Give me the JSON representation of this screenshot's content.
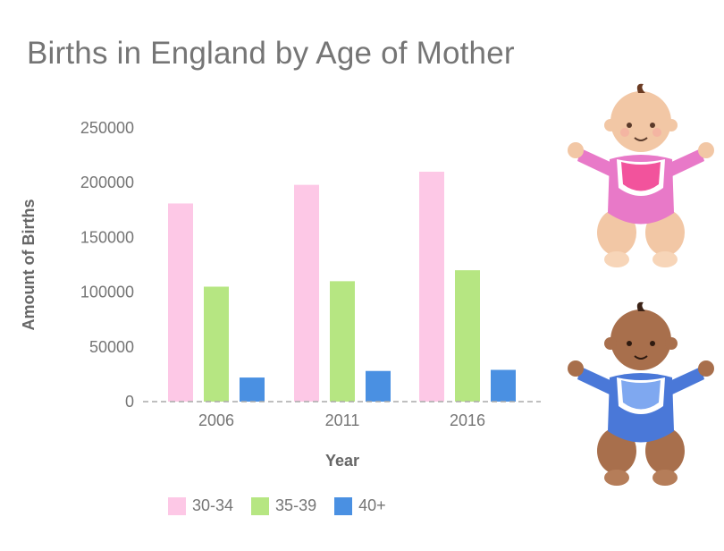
{
  "chart_data": {
    "type": "bar",
    "title": "Births in England by Age of Mother",
    "xlabel": "Year",
    "ylabel": "Amount of Births",
    "categories": [
      "2006",
      "2011",
      "2016"
    ],
    "ylim": [
      0,
      250000
    ],
    "yticks": [
      "0",
      "50000",
      "100000",
      "150000",
      "200000",
      "250000"
    ],
    "grid": false,
    "legend_position": "bottom-left",
    "series": [
      {
        "name": "30-34",
        "color": "#fdc8e6",
        "values": [
          181000,
          198000,
          210000
        ]
      },
      {
        "name": "35-39",
        "color": "#b6e682",
        "values": [
          105000,
          110000,
          120000
        ]
      },
      {
        "name": "40+",
        "color": "#4a90e2",
        "values": [
          22000,
          28000,
          29000
        ]
      }
    ]
  },
  "illustrations": {
    "top": {
      "icon": "baby-girl-pink-onesie-icon",
      "colors": {
        "skin": "#f2c7a5",
        "outfit": "#e879c8",
        "bib": "#f2539c"
      }
    },
    "bottom": {
      "icon": "baby-boy-blue-onesie-icon",
      "colors": {
        "skin": "#a86f4c",
        "outfit": "#4a78d8",
        "bib": "#7fa8f0"
      }
    }
  }
}
